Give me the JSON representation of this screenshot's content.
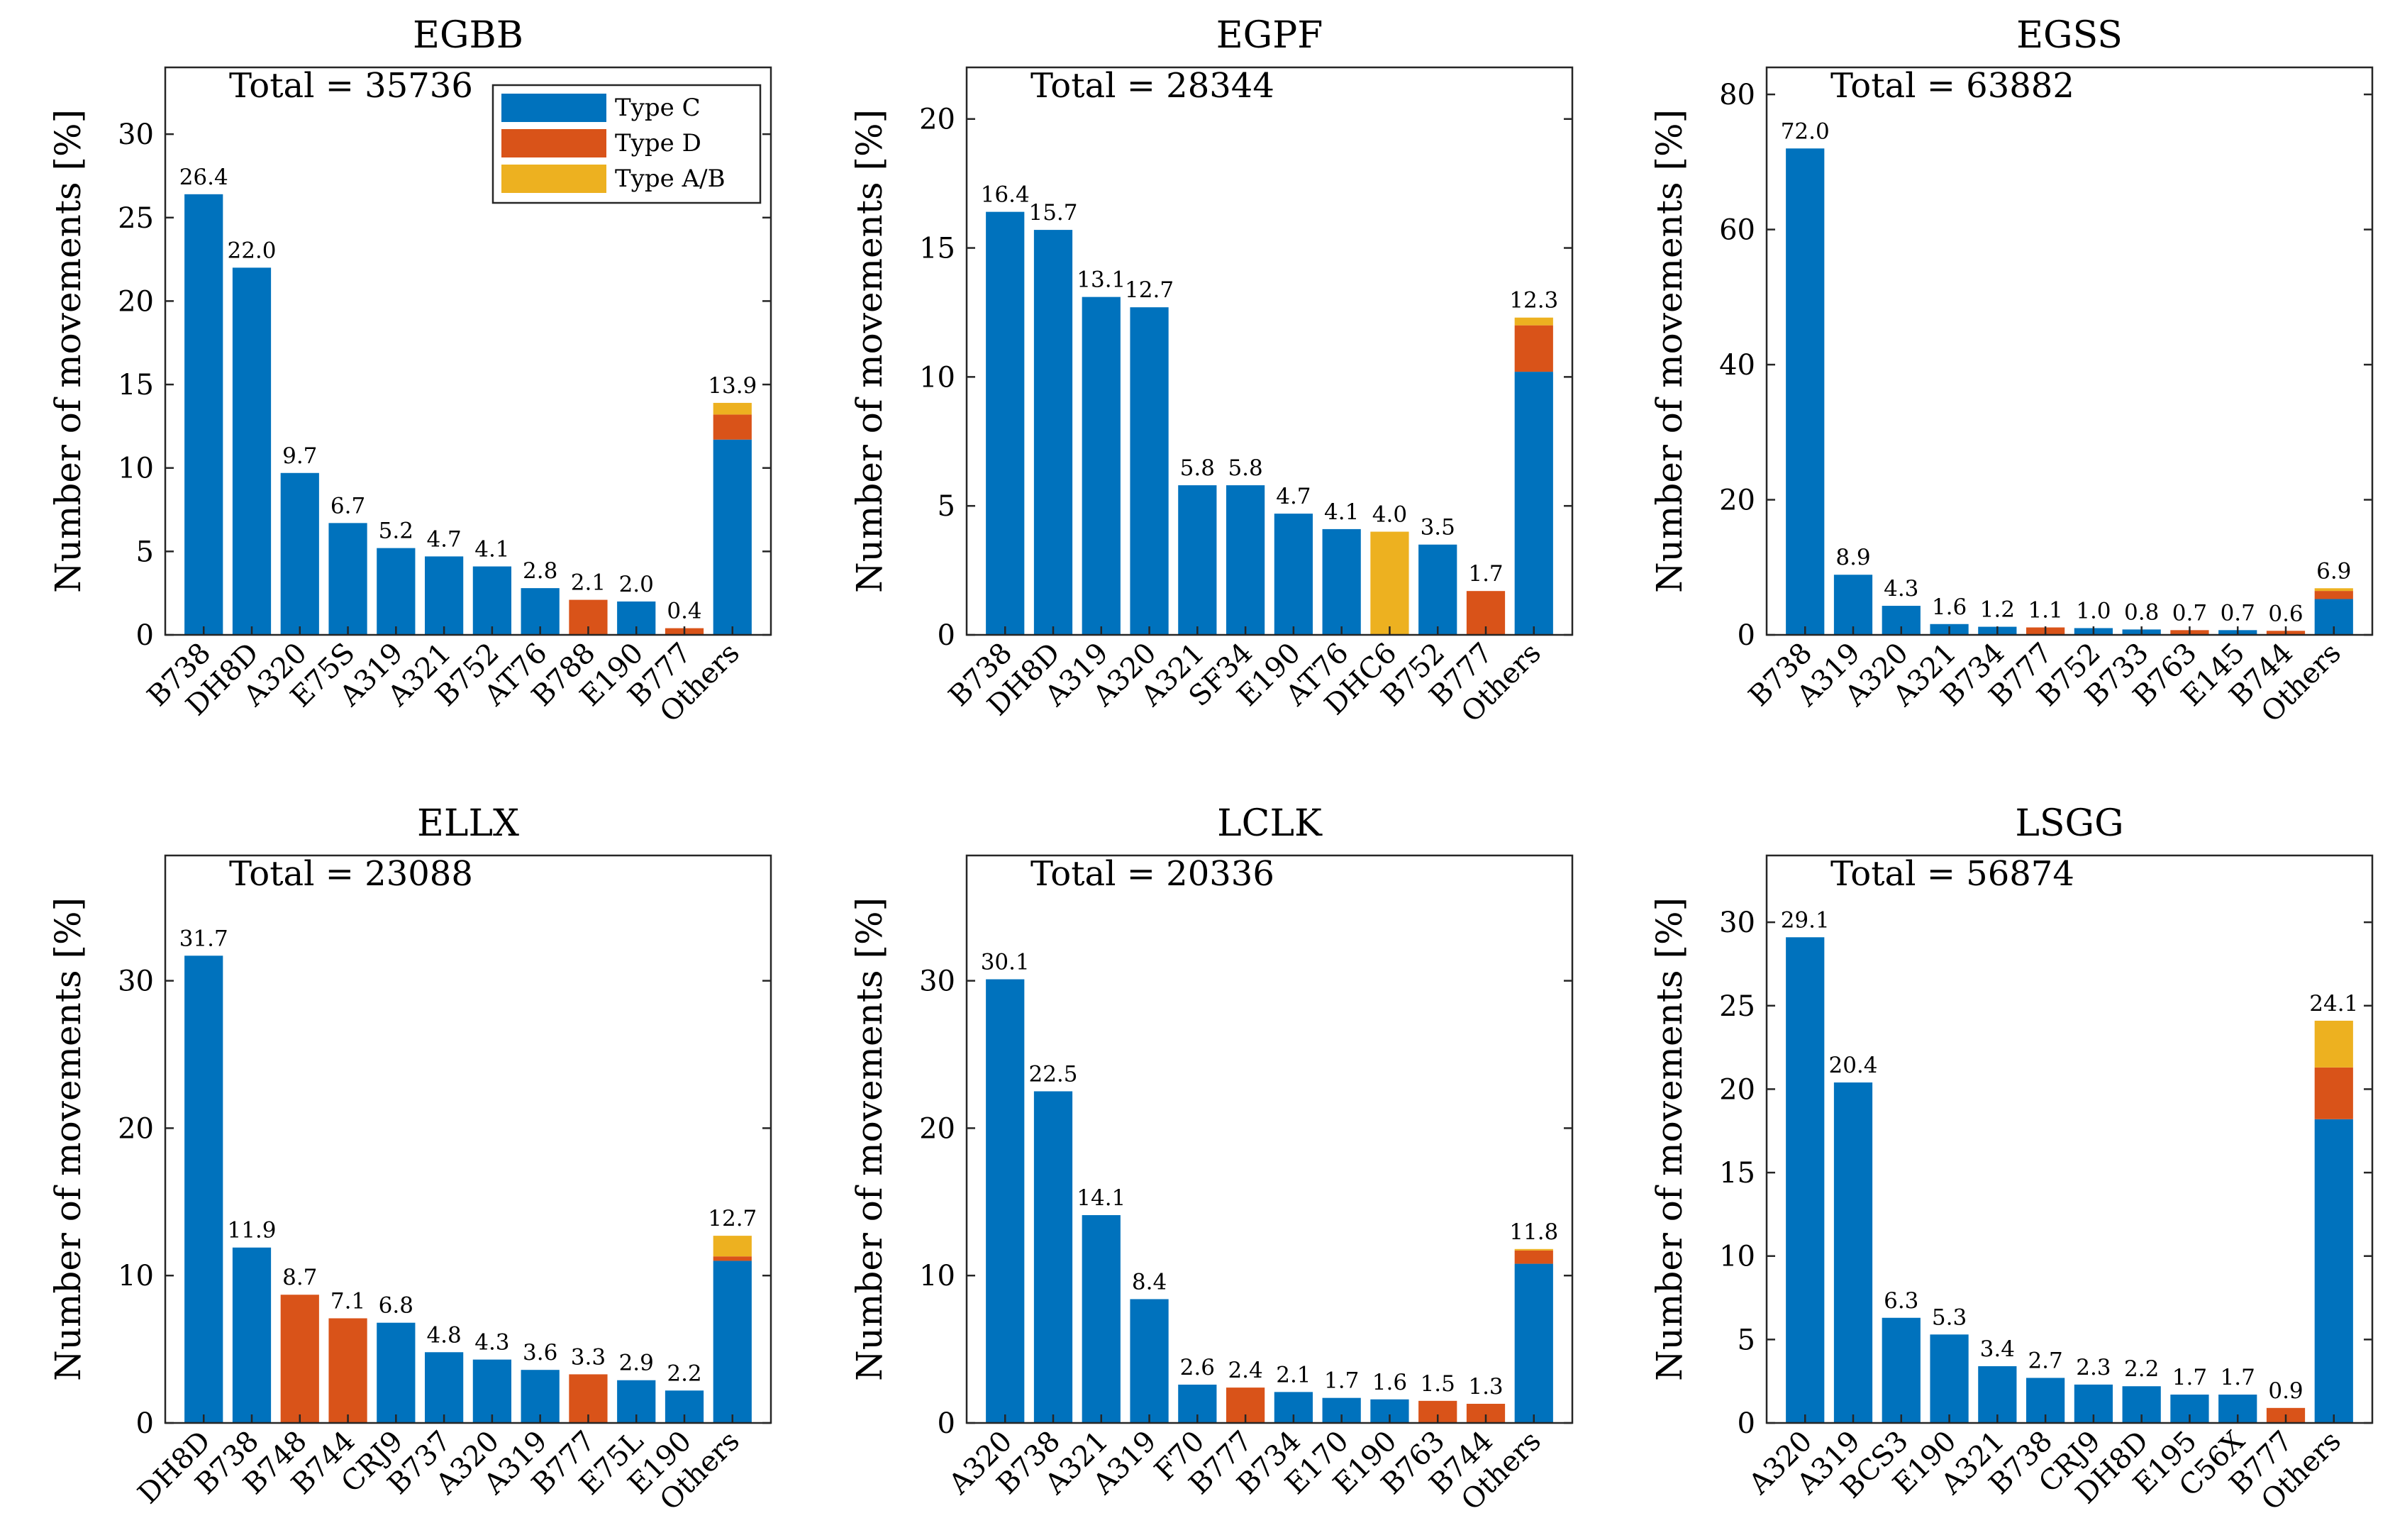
{
  "colors": {
    "type_c": "#0072BD",
    "type_d": "#D95319",
    "type_ab": "#EDB120"
  },
  "legend": {
    "labels": [
      "Type C",
      "Type D",
      "Type A/B"
    ]
  },
  "ylabel": "Number of movements [%]",
  "total_prefix": "Total = ",
  "chart_data": [
    {
      "type": "bar",
      "title": "EGBB",
      "total": "35736",
      "ylim": [
        0,
        34
      ],
      "yticks": [
        0,
        5,
        10,
        15,
        20,
        25,
        30
      ],
      "categories": [
        "B738",
        "DH8D",
        "A320",
        "E75S",
        "A319",
        "A321",
        "B752",
        "AT76",
        "B788",
        "E190",
        "B777",
        "Others"
      ],
      "labels": [
        "26.4",
        "22.0",
        "9.7",
        "6.7",
        "5.2",
        "4.7",
        "4.1",
        "2.8",
        "2.1",
        "2.0",
        "0.4",
        "13.9"
      ],
      "series": [
        {
          "name": "Type C",
          "values": [
            26.4,
            22.0,
            9.7,
            6.7,
            5.2,
            4.7,
            4.1,
            2.8,
            0,
            2.0,
            0,
            11.7
          ]
        },
        {
          "name": "Type D",
          "values": [
            0,
            0,
            0,
            0,
            0,
            0,
            0,
            0,
            2.1,
            0,
            0.4,
            1.5
          ]
        },
        {
          "name": "Type A/B",
          "values": [
            0,
            0,
            0,
            0,
            0,
            0,
            0,
            0,
            0,
            0,
            0,
            0.7
          ]
        }
      ]
    },
    {
      "type": "bar",
      "title": "EGPF",
      "total": "28344",
      "ylim": [
        0,
        22
      ],
      "yticks": [
        0,
        5,
        10,
        15,
        20
      ],
      "categories": [
        "B738",
        "DH8D",
        "A319",
        "A320",
        "A321",
        "SF34",
        "E190",
        "AT76",
        "DHC6",
        "B752",
        "B777",
        "Others"
      ],
      "labels": [
        "16.4",
        "15.7",
        "13.1",
        "12.7",
        "5.8",
        "5.8",
        "4.7",
        "4.1",
        "4.0",
        "3.5",
        "1.7",
        "12.3"
      ],
      "series": [
        {
          "name": "Type C",
          "values": [
            16.4,
            15.7,
            13.1,
            12.7,
            5.8,
            5.8,
            4.7,
            4.1,
            0,
            3.5,
            0,
            10.2
          ]
        },
        {
          "name": "Type D",
          "values": [
            0,
            0,
            0,
            0,
            0,
            0,
            0,
            0,
            0,
            0,
            1.7,
            1.8
          ]
        },
        {
          "name": "Type A/B",
          "values": [
            0,
            0,
            0,
            0,
            0,
            0,
            0,
            0,
            4.0,
            0,
            0,
            0.3
          ]
        }
      ]
    },
    {
      "type": "bar",
      "title": "EGSS",
      "total": "63882",
      "ylim": [
        0,
        84
      ],
      "yticks": [
        0,
        20,
        40,
        60,
        80
      ],
      "categories": [
        "B738",
        "A319",
        "A320",
        "A321",
        "B734",
        "B777",
        "B752",
        "B733",
        "B763",
        "E145",
        "B744",
        "Others"
      ],
      "labels": [
        "72.0",
        "8.9",
        "4.3",
        "1.6",
        "1.2",
        "1.1",
        "1.0",
        "0.8",
        "0.7",
        "0.7",
        "0.6",
        "6.9"
      ],
      "series": [
        {
          "name": "Type C",
          "values": [
            72.0,
            8.9,
            4.3,
            1.6,
            1.2,
            0,
            1.0,
            0.8,
            0,
            0.7,
            0,
            5.3
          ]
        },
        {
          "name": "Type D",
          "values": [
            0,
            0,
            0,
            0,
            0,
            1.1,
            0,
            0,
            0.7,
            0,
            0.6,
            1.2
          ]
        },
        {
          "name": "Type A/B",
          "values": [
            0,
            0,
            0,
            0,
            0,
            0,
            0,
            0,
            0,
            0,
            0,
            0.4
          ]
        }
      ]
    },
    {
      "type": "bar",
      "title": "ELLX",
      "total": "23088",
      "ylim": [
        0,
        38.5
      ],
      "yticks": [
        0,
        10,
        20,
        30
      ],
      "categories": [
        "DH8D",
        "B738",
        "B748",
        "B744",
        "CRJ9",
        "B737",
        "A320",
        "A319",
        "B777",
        "E75L",
        "E190",
        "Others"
      ],
      "labels": [
        "31.7",
        "11.9",
        "8.7",
        "7.1",
        "6.8",
        "4.8",
        "4.3",
        "3.6",
        "3.3",
        "2.9",
        "2.2",
        "12.7"
      ],
      "series": [
        {
          "name": "Type C",
          "values": [
            31.7,
            11.9,
            0,
            0,
            6.8,
            4.8,
            4.3,
            3.6,
            0,
            2.9,
            2.2,
            11.0
          ]
        },
        {
          "name": "Type D",
          "values": [
            0,
            0,
            8.7,
            7.1,
            0,
            0,
            0,
            0,
            3.3,
            0,
            0,
            0.3
          ]
        },
        {
          "name": "Type A/B",
          "values": [
            0,
            0,
            0,
            0,
            0,
            0,
            0,
            0,
            0,
            0,
            0,
            1.4
          ]
        }
      ]
    },
    {
      "type": "bar",
      "title": "LCLK",
      "total": "20336",
      "ylim": [
        0,
        38.5
      ],
      "yticks": [
        0,
        10,
        20,
        30
      ],
      "categories": [
        "A320",
        "B738",
        "A321",
        "A319",
        "F70",
        "B777",
        "B734",
        "E170",
        "E190",
        "B763",
        "B744",
        "Others"
      ],
      "labels": [
        "30.1",
        "22.5",
        "14.1",
        "8.4",
        "2.6",
        "2.4",
        "2.1",
        "1.7",
        "1.6",
        "1.5",
        "1.3",
        "11.8"
      ],
      "series": [
        {
          "name": "Type C",
          "values": [
            30.1,
            22.5,
            14.1,
            8.4,
            2.6,
            0,
            2.1,
            1.7,
            1.6,
            0,
            0,
            10.8
          ]
        },
        {
          "name": "Type D",
          "values": [
            0,
            0,
            0,
            0,
            0,
            2.4,
            0,
            0,
            0,
            1.5,
            1.3,
            0.9
          ]
        },
        {
          "name": "Type A/B",
          "values": [
            0,
            0,
            0,
            0,
            0,
            0,
            0,
            0,
            0,
            0,
            0,
            0.1
          ]
        }
      ]
    },
    {
      "type": "bar",
      "title": "LSGG",
      "total": "56874",
      "ylim": [
        0,
        34
      ],
      "yticks": [
        0,
        5,
        10,
        15,
        20,
        25,
        30
      ],
      "categories": [
        "A320",
        "A319",
        "BCS3",
        "E190",
        "A321",
        "B738",
        "CRJ9",
        "DH8D",
        "E195",
        "C56X",
        "B777",
        "Others"
      ],
      "labels": [
        "29.1",
        "20.4",
        "6.3",
        "5.3",
        "3.4",
        "2.7",
        "2.3",
        "2.2",
        "1.7",
        "1.7",
        "0.9",
        "24.1"
      ],
      "series": [
        {
          "name": "Type C",
          "values": [
            29.1,
            20.4,
            6.3,
            5.3,
            3.4,
            2.7,
            2.3,
            2.2,
            1.7,
            1.7,
            0,
            18.2
          ]
        },
        {
          "name": "Type D",
          "values": [
            0,
            0,
            0,
            0,
            0,
            0,
            0,
            0,
            0,
            0,
            0.9,
            3.1
          ]
        },
        {
          "name": "Type A/B",
          "values": [
            0,
            0,
            0,
            0,
            0,
            0,
            0,
            0,
            0,
            0,
            0,
            2.8
          ]
        }
      ]
    }
  ]
}
